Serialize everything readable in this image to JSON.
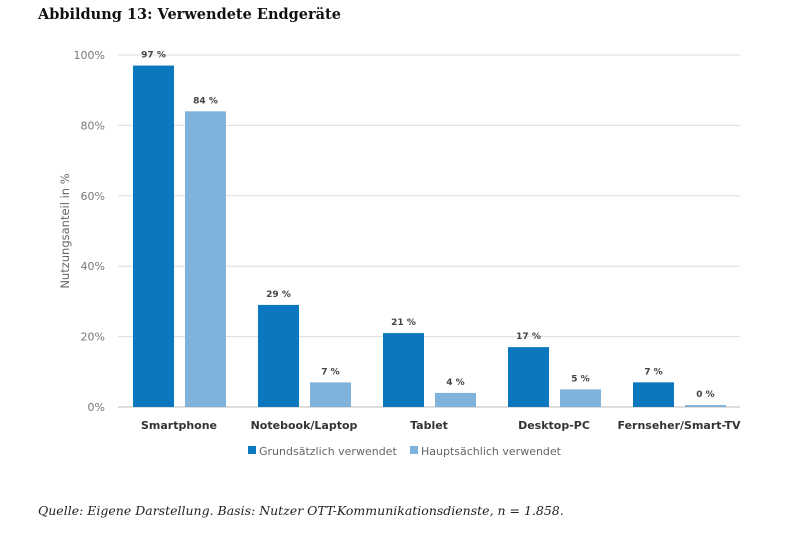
{
  "title": "Abbildung 13: Verwendete Endgeräte",
  "source": "Quelle: Eigene Darstellung. Basis: Nutzer OTT-Kommunikationsdienste, n = 1.858.",
  "chart_data": {
    "type": "bar",
    "title": "",
    "xlabel": "",
    "ylabel": "Nutzungsanteil in %",
    "ylim": [
      0,
      100
    ],
    "yticks": [
      "0%",
      "20%",
      "40%",
      "60%",
      "80%",
      "100%"
    ],
    "grid": true,
    "legend": "bottom",
    "categories": [
      "Smartphone",
      "Notebook/Laptop",
      "Tablet",
      "Desktop-PC",
      "Fernseher/Smart-TV"
    ],
    "series": [
      {
        "name": "Grundsätzlich verwendet",
        "color": "#0a77be",
        "values": [
          97,
          29,
          21,
          17,
          7
        ],
        "labels": [
          "97 %",
          "29 %",
          "21 %",
          "17 %",
          "7 %"
        ]
      },
      {
        "name": "Hauptsächlich verwendet",
        "color": "#7fb3dc",
        "values": [
          84,
          7,
          4,
          5,
          0
        ],
        "labels": [
          "84 %",
          "7 %",
          "4 %",
          "5 %",
          "0 %"
        ]
      }
    ]
  }
}
